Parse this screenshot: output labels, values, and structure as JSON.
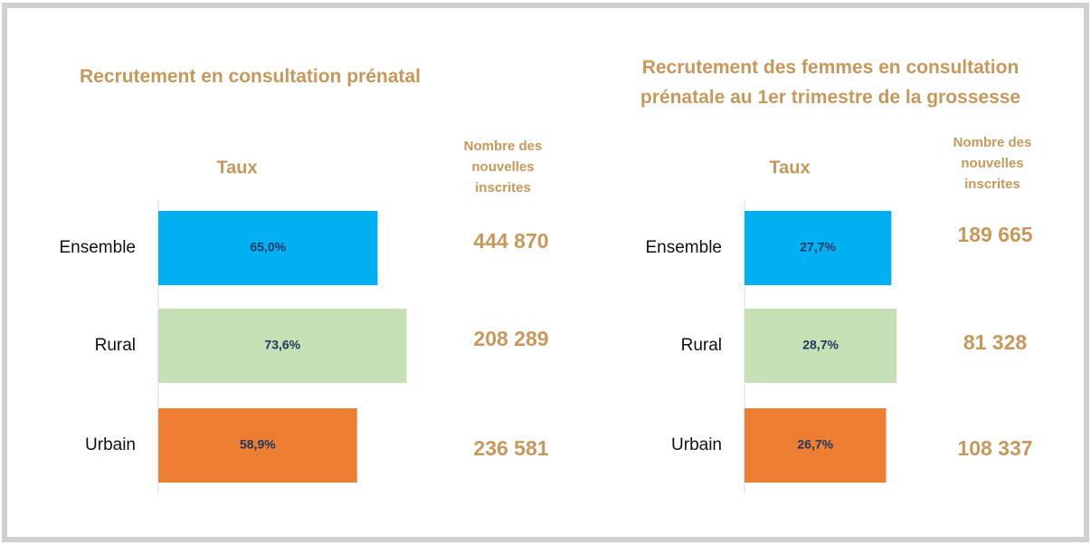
{
  "chart_data": [
    {
      "type": "bar",
      "orientation": "horizontal",
      "title": "Recrutement en consultation prénatal",
      "value_header": "Taux",
      "count_header": "Nombre des nouvelles inscrites",
      "categories": [
        "Ensemble",
        "Rural",
        "Urbain"
      ],
      "values": [
        65.0,
        73.6,
        58.9
      ],
      "value_labels": [
        "65,0%",
        "73,6%",
        "58,9%"
      ],
      "colors": [
        "#00b0f0",
        "#c5e0b4",
        "#ed7d31"
      ],
      "xlim": [
        0,
        100
      ],
      "counts": [
        "444 870",
        "208 289",
        "236 581"
      ]
    },
    {
      "type": "bar",
      "orientation": "horizontal",
      "title": "Recrutement des femmes en consultation prénatale au 1er trimestre de la grossesse",
      "value_header": "Taux",
      "count_header": "Nombre des nouvelles inscrites",
      "categories": [
        "Ensemble",
        "Rural",
        "Urbain"
      ],
      "values": [
        27.7,
        28.7,
        26.7
      ],
      "value_labels": [
        "27,7%",
        "28,7%",
        "26,7%"
      ],
      "colors": [
        "#00b0f0",
        "#c5e0b4",
        "#ed7d31"
      ],
      "xlim": [
        0,
        50
      ],
      "counts": [
        "189 665",
        "81 328",
        "108 337"
      ]
    }
  ]
}
